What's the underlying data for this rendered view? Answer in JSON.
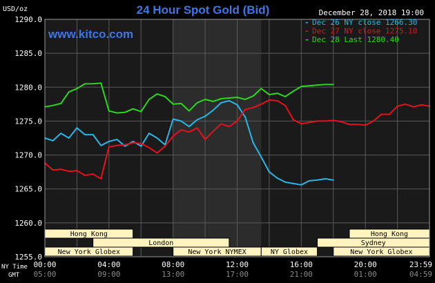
{
  "chart_data": {
    "type": "line",
    "title": "24 Hour Spot Gold (Bid)",
    "watermark": "www.kitco.com",
    "date_label": "December 28, 2018 19:00",
    "ylabel": "USD/oz",
    "ylim": [
      1255,
      1290
    ],
    "y_ticks": [
      "1290.0",
      "1285.0",
      "1280.0",
      "1275.0",
      "1270.0",
      "1265.0",
      "1260.0",
      "1255.0"
    ],
    "x_tick_labels_ny": [
      "00:00",
      "04:00",
      "08:00",
      "12:00",
      "16:00",
      "20:00",
      "23:59"
    ],
    "x_tick_labels_gmt": [
      "05:00",
      "09:00",
      "13:00",
      "17:00",
      "21:00",
      "01:00",
      "04:59"
    ],
    "x_row_label_ny": "NY Time",
    "x_row_label_gmt": "GMT",
    "grid": true,
    "legend_position": "top-right",
    "highlight_hours": [
      8.0,
      13.5
    ],
    "series": [
      {
        "name": "Dec 26 NY close 1266.30",
        "color": "#26b8e8",
        "x": [
          0,
          0.5,
          1,
          1.5,
          2,
          2.5,
          3,
          3.5,
          4,
          4.5,
          5,
          5.5,
          6,
          6.5,
          7,
          7.5,
          8,
          8.5,
          9,
          9.5,
          10,
          10.5,
          11,
          11.5,
          12,
          12.5,
          13,
          13.5,
          14,
          14.5,
          15,
          15.5,
          16,
          16.5,
          17,
          17.5,
          18
        ],
        "y": [
          1272.5,
          1272.1,
          1273.2,
          1272.5,
          1274.0,
          1273.0,
          1273.0,
          1271.4,
          1272.0,
          1272.3,
          1271.3,
          1272.0,
          1271.3,
          1273.2,
          1272.5,
          1271.5,
          1275.3,
          1275.0,
          1274.2,
          1275.2,
          1275.7,
          1276.6,
          1277.7,
          1278.0,
          1277.4,
          1275.6,
          1271.8,
          1269.7,
          1267.5,
          1266.6,
          1266.0,
          1265.8,
          1265.6,
          1266.2,
          1266.3,
          1266.5,
          1266.3
        ]
      },
      {
        "name": "Dec 27 NY close 1275.10",
        "color": "#e8101c",
        "x": [
          0,
          0.5,
          1,
          1.5,
          2,
          2.5,
          3,
          3.5,
          4,
          4.5,
          5,
          5.5,
          6,
          6.5,
          7,
          7.5,
          8,
          8.5,
          9,
          9.5,
          10,
          10.5,
          11,
          11.5,
          12,
          12.5,
          13,
          13.5,
          14,
          14.5,
          15,
          15.5,
          16,
          16.5,
          17,
          17.5,
          18,
          18.5,
          19,
          19.5,
          20,
          20.5,
          21,
          21.5,
          22,
          22.5,
          23,
          23.5,
          24
        ],
        "y": [
          1268.8,
          1267.8,
          1267.9,
          1267.6,
          1267.7,
          1267.0,
          1267.2,
          1266.5,
          1271.2,
          1271.4,
          1271.5,
          1271.8,
          1271.7,
          1271.1,
          1270.3,
          1271.3,
          1272.8,
          1273.7,
          1273.4,
          1274.0,
          1272.3,
          1273.5,
          1274.6,
          1274.2,
          1275.0,
          1276.7,
          1277.0,
          1277.5,
          1278.1,
          1278.0,
          1277.3,
          1275.2,
          1274.6,
          1274.8,
          1275.0,
          1275.0,
          1275.1,
          1274.9,
          1274.5,
          1274.5,
          1274.4,
          1275.0,
          1276.0,
          1276.0,
          1277.2,
          1277.5,
          1277.1,
          1277.4,
          1277.2
        ]
      },
      {
        "name": "Dec 28 Last 1280.40",
        "color": "#2bd81a",
        "x": [
          0,
          0.5,
          1,
          1.5,
          2,
          2.5,
          3,
          3.5,
          4,
          4.5,
          5,
          5.5,
          6,
          6.5,
          7,
          7.5,
          8,
          8.5,
          9,
          9.5,
          10,
          10.5,
          11,
          11.5,
          12,
          12.5,
          13,
          13.5,
          14,
          14.5,
          15,
          15.5,
          16,
          16.5,
          17,
          17.5,
          18
        ],
        "y": [
          1277.1,
          1277.3,
          1277.6,
          1279.3,
          1279.8,
          1280.5,
          1280.5,
          1280.6,
          1276.5,
          1276.2,
          1276.3,
          1276.8,
          1276.4,
          1278.2,
          1279.0,
          1278.6,
          1277.5,
          1277.6,
          1276.5,
          1277.7,
          1278.2,
          1277.9,
          1278.3,
          1278.4,
          1278.5,
          1278.2,
          1278.7,
          1279.8,
          1278.9,
          1279.1,
          1278.6,
          1279.4,
          1280.1,
          1280.2,
          1280.3,
          1280.4,
          1280.4
        ]
      }
    ],
    "sessions": [
      {
        "label": "Hong Kong",
        "start": 0.0,
        "end": 5.5,
        "row": 1
      },
      {
        "label": "London",
        "start": 3.0,
        "end": 11.5,
        "row": 2
      },
      {
        "label": "New York Globex",
        "start": 0.0,
        "end": 5.5,
        "row": 3
      },
      {
        "label": "New York NYMEX",
        "start": 8.0,
        "end": 13.5,
        "row": 3
      },
      {
        "label": "NY Globex",
        "start": 13.5,
        "end": 17.0,
        "row": 3
      },
      {
        "label": "Hong Kong",
        "start": 19.0,
        "end": 24.0,
        "row": 1
      },
      {
        "label": "Sydney",
        "start": 17.0,
        "end": 24.0,
        "row": 2
      },
      {
        "label": "New York Globex",
        "start": 18.0,
        "end": 24.0,
        "row": 3
      }
    ]
  },
  "colors": {
    "background": "#000000",
    "plot_background": "#1a1a1a",
    "highlight_band": "#2c2c2c",
    "grid": "#5a5a5a",
    "title": "#3f76e0",
    "watermark": "#3f76e0",
    "text": "#ffffff",
    "session_fill": "#fff3bf",
    "session_stroke": "#000000"
  }
}
